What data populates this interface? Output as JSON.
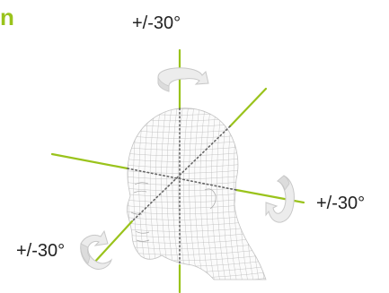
{
  "title_fragment": "n",
  "labels": {
    "vertical_axis": "+/-30°",
    "horizontal_axis": "+/-30°",
    "depth_axis": "+/-30°"
  },
  "colors": {
    "accent": "#9ac31c",
    "axis_dotted": "#666666",
    "mesh": "#b9b9b9",
    "arrow_fill": "#ececec",
    "arrow_stroke": "#c8c8c8"
  },
  "icons": {
    "head": "wireframe-head-icon",
    "rotation": "curved-rotation-arrow-icon"
  }
}
